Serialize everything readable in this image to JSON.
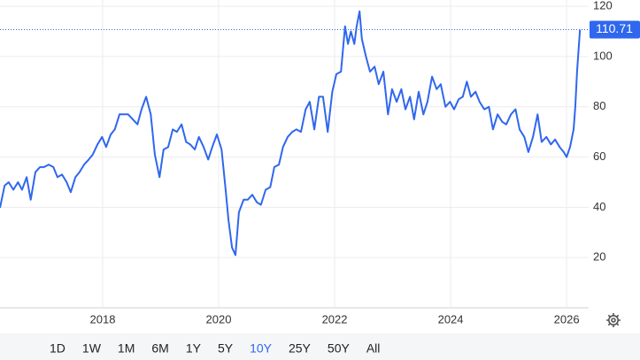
{
  "chart_data": {
    "type": "line",
    "x": [
      2016.23,
      2016.31,
      2016.38,
      2016.46,
      2016.54,
      2016.61,
      2016.69,
      2016.76,
      2016.84,
      2016.92,
      2016.99,
      2017.07,
      2017.15,
      2017.22,
      2017.3,
      2017.38,
      2017.45,
      2017.53,
      2017.6,
      2017.68,
      2017.76,
      2017.83,
      2017.91,
      2017.99,
      2018.06,
      2018.14,
      2018.21,
      2018.29,
      2018.37,
      2018.44,
      2018.52,
      2018.6,
      2018.67,
      2018.75,
      2018.83,
      2018.9,
      2018.98,
      2019.05,
      2019.13,
      2019.21,
      2019.28,
      2019.36,
      2019.44,
      2019.51,
      2019.59,
      2019.66,
      2019.74,
      2019.82,
      2019.89,
      2019.97,
      2020.05,
      2020.12,
      2020.17,
      2020.23,
      2020.29,
      2020.35,
      2020.43,
      2020.5,
      2020.58,
      2020.66,
      2020.73,
      2020.81,
      2020.89,
      2020.96,
      2021.04,
      2021.11,
      2021.19,
      2021.27,
      2021.34,
      2021.42,
      2021.5,
      2021.57,
      2021.65,
      2021.73,
      2021.8,
      2021.88,
      2021.96,
      2022.03,
      2022.11,
      2022.18,
      2022.23,
      2022.28,
      2022.34,
      2022.38,
      2022.43,
      2022.47,
      2022.54,
      2022.61,
      2022.69,
      2022.76,
      2022.84,
      2022.92,
      2022.99,
      2023.07,
      2023.15,
      2023.22,
      2023.3,
      2023.37,
      2023.45,
      2023.53,
      2023.6,
      2023.68,
      2023.76,
      2023.83,
      2023.91,
      2023.99,
      2024.06,
      2024.14,
      2024.21,
      2024.28,
      2024.35,
      2024.43,
      2024.5,
      2024.58,
      2024.66,
      2024.73,
      2024.81,
      2024.89,
      2024.96,
      2025.04,
      2025.12,
      2025.19,
      2025.27,
      2025.34,
      2025.42,
      2025.5,
      2025.57,
      2025.65,
      2025.73,
      2025.8,
      2025.88,
      2025.95,
      2026.0,
      2026.06,
      2026.12,
      2026.15,
      2026.18,
      2026.23
    ],
    "values": [
      39.8,
      48.6,
      50,
      47,
      50,
      47,
      52,
      43,
      54,
      56,
      56,
      57,
      56,
      52,
      53,
      50,
      46,
      52,
      54,
      57,
      59,
      61,
      65,
      68,
      64,
      69,
      71,
      77,
      77,
      77,
      75,
      73,
      79,
      84,
      77,
      61,
      52,
      63,
      64,
      71,
      70,
      73,
      66,
      65,
      63,
      68,
      64,
      59,
      64,
      69,
      63,
      47,
      35,
      24,
      21,
      38,
      43,
      43,
      45,
      42,
      41,
      47,
      48,
      56,
      57,
      64,
      68,
      70,
      71,
      70,
      79,
      82,
      71,
      84,
      84,
      70,
      86,
      93,
      94,
      112,
      105,
      110,
      105,
      112,
      118,
      107,
      100,
      94,
      96,
      89,
      94,
      77,
      87,
      82,
      87,
      79,
      84,
      75,
      86,
      77,
      82,
      92,
      87,
      89,
      80,
      82,
      79,
      83,
      84,
      90,
      84,
      86,
      82,
      79,
      80,
      71,
      77,
      74,
      73,
      77,
      79,
      71,
      68,
      62,
      68,
      77,
      66,
      68,
      65,
      67,
      64,
      62,
      60,
      64,
      71,
      80,
      94,
      110.71
    ],
    "color": "#2f67ee",
    "xlim": [
      2016.23,
      2026.38
    ],
    "xticks": [
      2018,
      2020,
      2022,
      2024,
      2026
    ],
    "ylim": [
      0,
      122.5
    ],
    "yticks": [
      20,
      40,
      60,
      80,
      100,
      120
    ],
    "grid": true
  },
  "controls": {
    "ranges": [
      "1D",
      "1W",
      "1M",
      "6M",
      "1Y",
      "5Y",
      "10Y",
      "25Y",
      "50Y",
      "All"
    ],
    "selected": "10Y"
  }
}
